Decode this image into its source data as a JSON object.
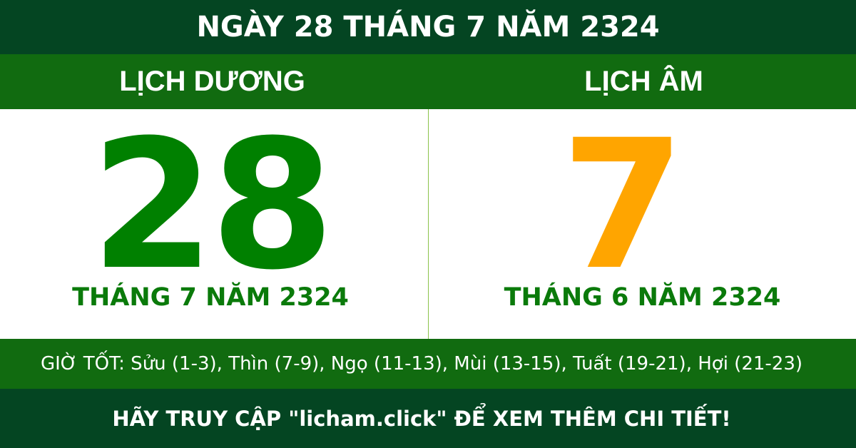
{
  "header": {
    "title": "NGÀY 28 THÁNG 7 NĂM 2324"
  },
  "solar": {
    "label": "LỊCH DƯƠNG",
    "day": "28",
    "month_year": "THÁNG 7 NĂM 2324"
  },
  "lunar": {
    "label": "LỊCH ÂM",
    "day": "7",
    "month_year": "THÁNG 6 NĂM 2324"
  },
  "good_hours": "GIỜ TỐT: Sửu (1-3), Thìn (7-9), Ngọ (11-13), Mùi (13-15), Tuất (19-21), Hợi (21-23)",
  "footer": "HÃY TRUY CẬP \"licham.click\" ĐỂ XEM THÊM CHI TIẾT!",
  "colors": {
    "dark_green": "#044522",
    "green": "#116b10",
    "solar_day": "#008000",
    "lunar_day": "#ffa500"
  }
}
